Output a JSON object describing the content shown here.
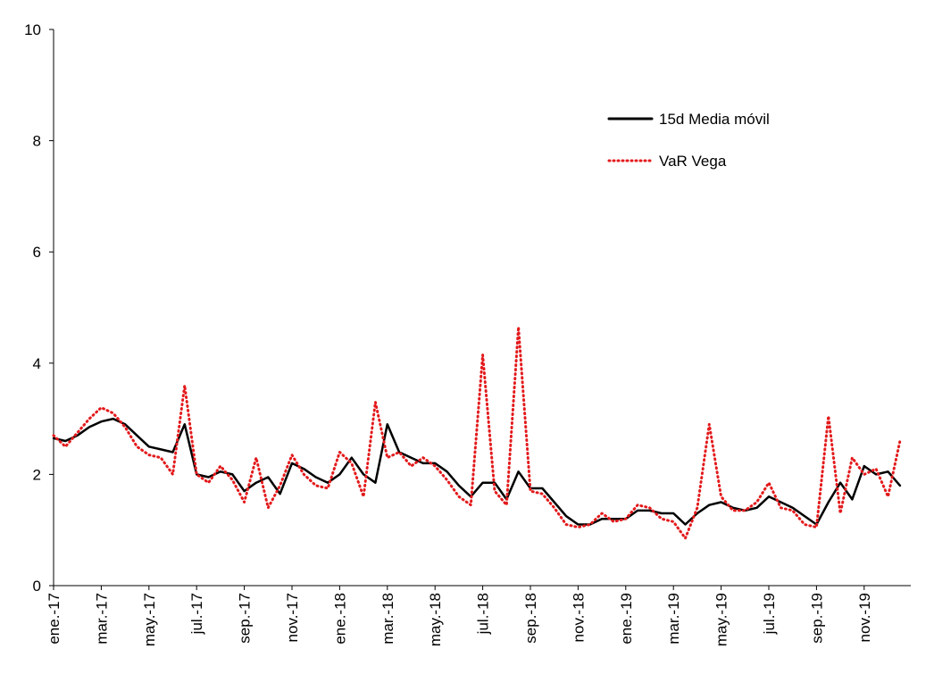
{
  "chart_data": {
    "type": "line",
    "categories": [
      "ene.-17",
      null,
      null,
      null,
      "mar.-17",
      null,
      null,
      null,
      "may.-17",
      null,
      null,
      null,
      "jul.-17",
      null,
      null,
      null,
      "sep.-17",
      null,
      null,
      null,
      "nov.-17",
      null,
      null,
      null,
      "ene.-18",
      null,
      null,
      null,
      "mar.-18",
      null,
      null,
      null,
      "may.-18",
      null,
      null,
      null,
      "jul.-18",
      null,
      null,
      null,
      "sep.-18",
      null,
      null,
      null,
      "nov.-18",
      null,
      null,
      null,
      "ene.-19",
      null,
      null,
      null,
      "mar.-19",
      null,
      null,
      null,
      "may.-19",
      null,
      null,
      null,
      "jul.-19",
      null,
      null,
      null,
      "sep.-19",
      null,
      null,
      null,
      "nov.-19",
      null,
      null,
      null
    ],
    "series": [
      {
        "name": "15d Media móvil",
        "color": "#000000",
        "dash": "solid",
        "values": [
          2.65,
          2.6,
          2.7,
          2.85,
          2.95,
          3.0,
          2.9,
          2.7,
          2.5,
          2.45,
          2.4,
          2.9,
          2.0,
          1.95,
          2.05,
          2.0,
          1.7,
          1.85,
          1.95,
          1.65,
          2.2,
          2.1,
          1.95,
          1.85,
          2.0,
          2.3,
          2.0,
          1.85,
          2.9,
          2.4,
          2.3,
          2.2,
          2.2,
          2.05,
          1.8,
          1.6,
          1.85,
          1.85,
          1.55,
          2.05,
          1.75,
          1.75,
          1.5,
          1.25,
          1.1,
          1.1,
          1.2,
          1.2,
          1.2,
          1.35,
          1.35,
          1.3,
          1.3,
          1.1,
          1.3,
          1.45,
          1.5,
          1.4,
          1.35,
          1.4,
          1.6,
          1.5,
          1.4,
          1.25,
          1.1,
          1.5,
          1.85,
          1.55,
          2.15,
          2.0,
          2.05,
          1.8
        ]
      },
      {
        "name": "VaR Vega",
        "color": "#e31a1c",
        "dash": "dotted",
        "values": [
          2.7,
          2.5,
          2.75,
          3.0,
          3.2,
          3.1,
          2.85,
          2.5,
          2.35,
          2.3,
          2.0,
          3.6,
          2.0,
          1.85,
          2.15,
          1.9,
          1.5,
          2.3,
          1.4,
          1.8,
          2.35,
          2.0,
          1.8,
          1.75,
          2.4,
          2.2,
          1.6,
          3.3,
          2.3,
          2.4,
          2.15,
          2.3,
          2.15,
          1.9,
          1.6,
          1.45,
          4.15,
          1.7,
          1.45,
          4.65,
          1.7,
          1.65,
          1.4,
          1.1,
          1.05,
          1.1,
          1.3,
          1.15,
          1.2,
          1.45,
          1.4,
          1.2,
          1.15,
          0.85,
          1.4,
          2.9,
          1.6,
          1.35,
          1.35,
          1.5,
          1.85,
          1.4,
          1.35,
          1.1,
          1.05,
          3.05,
          1.3,
          2.3,
          2.0,
          2.1,
          1.6,
          2.6
        ]
      }
    ],
    "ylim": [
      0,
      10
    ],
    "yticks": [
      0,
      2,
      4,
      6,
      8,
      10
    ],
    "grid": false,
    "legend": "upper right"
  }
}
